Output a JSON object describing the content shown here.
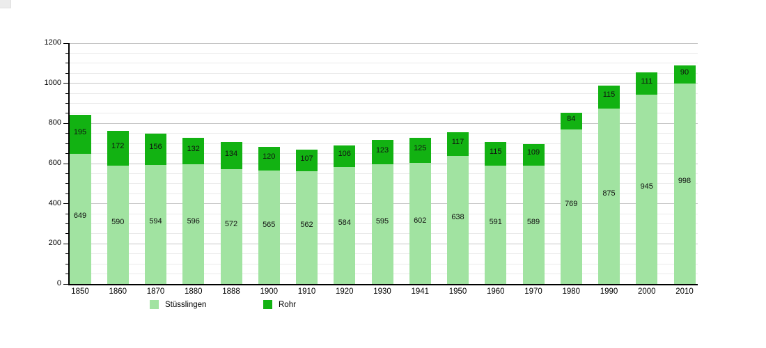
{
  "chart_data": {
    "type": "bar",
    "stacked": true,
    "title": "",
    "xlabel": "",
    "ylabel": "",
    "categories": [
      "1850",
      "1860",
      "1870",
      "1880",
      "1888",
      "1900",
      "1910",
      "1920",
      "1930",
      "1941",
      "1950",
      "1960",
      "1970",
      "1980",
      "1990",
      "2000",
      "2010"
    ],
    "series": [
      {
        "name": "Stüsslingen",
        "color": "#a1e3a1",
        "values": [
          649,
          590,
          594,
          596,
          572,
          565,
          562,
          584,
          595,
          602,
          638,
          591,
          589,
          769,
          875,
          945,
          998
        ]
      },
      {
        "name": "Rohr",
        "color": "#12b212",
        "values": [
          195,
          172,
          156,
          132,
          134,
          120,
          107,
          106,
          123,
          125,
          117,
          115,
          109,
          84,
          115,
          111,
          90
        ]
      }
    ],
    "ylim": [
      0,
      1200
    ],
    "y_ticks": [
      0,
      200,
      400,
      600,
      800,
      1000,
      1200
    ],
    "y_minor_step": 50,
    "grid": "horizontal",
    "legend_position": "bottom",
    "bar_value_labels": true,
    "value_label_color": "#111111",
    "axis_color": "#000000",
    "grid_minor_color": "#eaeaea",
    "grid_major_color": "#c6c6c6"
  }
}
